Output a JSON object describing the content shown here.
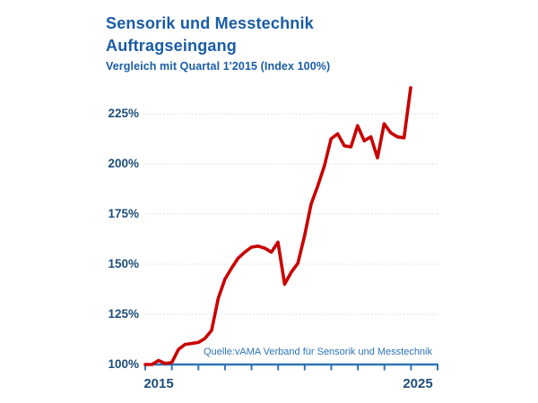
{
  "header": {
    "title_line1": "Sensorik und Messtechnik",
    "title_line2": "Auftragseingang",
    "subtitle": "Vergleich mit Quartal 1'2015 (Index 100%)"
  },
  "source_note": "Quelle:vAMA Verband für Sensorik und Messtechnik",
  "x_axis": {
    "first_label": "2015",
    "last_label": "2025"
  },
  "chart_data": {
    "type": "line",
    "title": "Sensorik und Messtechnik Auftragseingang",
    "subtitle": "Vergleich mit Quartal 1'2015 (Index 100%)",
    "x_unit": "quarter",
    "categories": [
      "2015 Q1",
      "2015 Q2",
      "2015 Q3",
      "2015 Q4",
      "2016 Q1",
      "2016 Q2",
      "2016 Q3",
      "2016 Q4",
      "2017 Q1",
      "2017 Q2",
      "2017 Q3",
      "2017 Q4",
      "2018 Q1",
      "2018 Q2",
      "2018 Q3",
      "2018 Q4",
      "2019 Q1",
      "2019 Q2",
      "2019 Q3",
      "2019 Q4",
      "2020 Q1",
      "2020 Q2",
      "2020 Q3",
      "2020 Q4",
      "2021 Q1",
      "2021 Q2",
      "2021 Q3",
      "2021 Q4",
      "2022 Q1",
      "2022 Q2",
      "2022 Q3",
      "2022 Q4",
      "2023 Q1",
      "2023 Q2",
      "2023 Q3",
      "2023 Q4",
      "2024 Q1",
      "2024 Q2",
      "2024 Q3",
      "2024 Q4",
      "2025 Q1"
    ],
    "values": [
      100,
      100,
      102,
      100.5,
      101,
      107.5,
      110,
      110.5,
      111,
      113,
      117,
      133,
      142.5,
      148,
      153,
      156,
      158.5,
      159,
      158,
      156,
      161,
      140,
      146,
      150.5,
      164,
      180,
      189,
      199,
      212.5,
      215,
      209,
      208.5,
      219,
      211.5,
      213.5,
      203,
      220,
      215.5,
      213.5,
      213,
      238
    ],
    "ylim": [
      100,
      240
    ],
    "y_ticks": [
      100,
      125,
      150,
      175,
      200,
      225
    ],
    "y_tick_labels": [
      "100%",
      "125%",
      "150%",
      "175%",
      "200%",
      "225%"
    ],
    "x_labels": [
      "2015",
      "2025"
    ],
    "x_minor_tick_count": 12,
    "grid": "dotted horizontal",
    "legend": "none",
    "line_color": "#c90000",
    "axis_color": "#2e74b5",
    "grid_color": "#d8d8d8",
    "label_color": "#1f4e79",
    "title_color": "#1a5ca6"
  }
}
